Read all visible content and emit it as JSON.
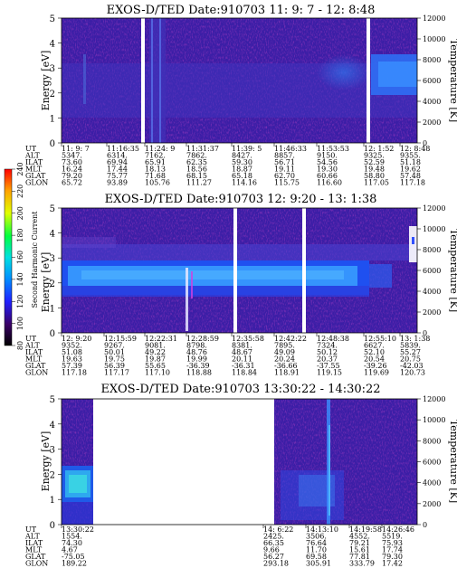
{
  "chart_data": [
    {
      "type": "heatmap",
      "title": "EXOS-D/TED   Date:910703  11: 9: 7 - 12: 8:48",
      "ylabel": "Energy [eV]",
      "y2label": "Temperature [K]",
      "yticks": [
        "0",
        "1",
        "2",
        "3",
        "4",
        "5"
      ],
      "y2ticks": [
        "0",
        "2000",
        "4000",
        "6000",
        "8000",
        "10000",
        "12000"
      ],
      "ylim": [
        0,
        5
      ],
      "y2lim": [
        0,
        12000
      ],
      "rows": [
        "UT",
        "ALT",
        "ILAT",
        "MLT",
        "GLAT",
        "GLON"
      ],
      "columns": [
        [
          "11: 9: 7",
          "5347.",
          "73.60",
          "16.24",
          "79.20",
          "65.72"
        ],
        [
          "11:16:35",
          "6314.",
          "69.94",
          "17.44",
          "75.77",
          "93.89"
        ],
        [
          "11:24: 9",
          "7162.",
          "65.91",
          "18.13",
          "71.68",
          "105.76"
        ],
        [
          "11:31:37",
          "7862.",
          "62.35",
          "18.56",
          "68.15",
          "111.27"
        ],
        [
          "11:39: 5",
          "8427.",
          "59.30",
          "18.87",
          "65.18",
          "114.16"
        ],
        [
          "11:46:33",
          "8857.",
          "56.71",
          "19.11",
          "62.70",
          "115.75"
        ],
        [
          "11:53:53",
          "9150.",
          "54.56",
          "19.30",
          "60.66",
          "116.60"
        ],
        [
          "12: 1:52",
          "9325.",
          "52.59",
          "19.48",
          "58.80",
          "117.05"
        ],
        [
          "12: 8:48",
          "9355.",
          "51.18",
          "19.62",
          "57.48",
          "117.18"
        ]
      ]
    },
    {
      "type": "heatmap",
      "title": "EXOS-D/TED   Date:910703  12: 9:20 - 13: 1:38",
      "ylabel": "Energy [eV]",
      "y2label": "Temperature [K]",
      "yticks": [
        "0",
        "1",
        "2",
        "3",
        "4",
        "5"
      ],
      "y2ticks": [
        "0",
        "2000",
        "4000",
        "6000",
        "8000",
        "10000",
        "12000"
      ],
      "ylim": [
        0,
        5
      ],
      "y2lim": [
        0,
        12000
      ],
      "rows": [
        "UT",
        "ALT",
        "ILAT",
        "MLT",
        "GLAT",
        "GLON"
      ],
      "columns": [
        [
          "12: 9:20",
          "9352.",
          "51.08",
          "19.63",
          "57.39",
          "117.18"
        ],
        [
          "12:15:59",
          "9267.",
          "50.01",
          "19.75",
          "56.39",
          "117.17"
        ],
        [
          "12:22:31",
          "9081.",
          "49.22",
          "19.87",
          "55.65",
          "117.10"
        ],
        [
          "12:28:59",
          "8798.",
          "48.76",
          "19.99",
          "-36.39",
          "118.88"
        ],
        [
          "12:35:58",
          "8381.",
          "48.67",
          "20.11",
          "-36.31",
          "118.84"
        ],
        [
          "12:42:22",
          "7895.",
          "49.09",
          "20.24",
          "-36.66",
          "118.91"
        ],
        [
          "12:48:38",
          "7324.",
          "50.12",
          "20.37",
          "-37.55",
          "119.15"
        ],
        [
          "12:55:10",
          "6627.",
          "52.10",
          "20.54",
          "-39.26",
          "119.69"
        ],
        [
          "13: 1:38",
          "5839.",
          "55.27",
          "20.75",
          "-42.03",
          "120.73"
        ]
      ]
    },
    {
      "type": "heatmap",
      "title": "EXOS-D/TED   Date:910703  13:30:22 - 14:30:22",
      "ylabel": "Energy [eV]",
      "y2label": "Temperature [K]",
      "yticks": [
        "0",
        "1",
        "2",
        "3",
        "4",
        "5"
      ],
      "y2ticks": [
        "0",
        "2000",
        "4000",
        "6000",
        "8000",
        "10000",
        "12000"
      ],
      "ylim": [
        0,
        5
      ],
      "y2lim": [
        0,
        12000
      ],
      "rows": [
        "UT",
        "ALT",
        "ILAT",
        "MLT",
        "GLAT",
        "GLON"
      ],
      "columns": [
        [
          "13:30:22",
          "1554.",
          "74.30",
          "4.67",
          "-75.05",
          "189.22"
        ],
        [
          "14: 6:22",
          "2425.",
          "66.35",
          "9.66",
          "56.27",
          "293.18"
        ],
        [
          "14:13:10",
          "3506.",
          "76.64",
          "11.70",
          "69.58",
          "305.91"
        ],
        [
          "14:19:58",
          "4552.",
          "79.21",
          "15.61",
          "77.81",
          "333.79"
        ],
        [
          "14:26:46",
          "5519.",
          "75.93",
          "17.74",
          "79.30",
          "17.42"
        ]
      ]
    }
  ],
  "colorbar": {
    "label": "Second Harmonic Current",
    "ticks": [
      "80",
      "100",
      "120",
      "140",
      "160",
      "180",
      "200",
      "220",
      "240"
    ],
    "colors": [
      "#000000",
      "#3a0066",
      "#2020ff",
      "#0090ff",
      "#00e0e0",
      "#00ff40",
      "#e0ff00",
      "#ffa000",
      "#ff0000"
    ]
  }
}
